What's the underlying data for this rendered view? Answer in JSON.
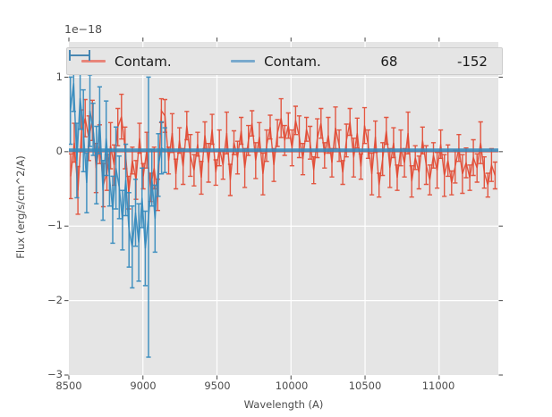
{
  "figure": {
    "offset_label": "1e−18"
  },
  "axes": {
    "xlabel": "Wavelength (A)",
    "ylabel": "Flux (erg/s/cm^2/A)",
    "x_ticks": [
      {
        "value": 8500,
        "label": "8500"
      },
      {
        "value": 9000,
        "label": "9000"
      },
      {
        "value": 9500,
        "label": "9500"
      },
      {
        "value": 10000,
        "label": "10000"
      },
      {
        "value": 10500,
        "label": "10500"
      },
      {
        "value": 11000,
        "label": "11000"
      }
    ],
    "y_ticks": [
      {
        "value": 1,
        "label": "1"
      },
      {
        "value": 0,
        "label": "0"
      },
      {
        "value": -1,
        "label": "−1"
      },
      {
        "value": -2,
        "label": "−2"
      },
      {
        "value": -3,
        "label": "−3"
      }
    ],
    "background_color": "#e5e5e5",
    "grid_color": "#ffffff",
    "tick_color": "#555555"
  },
  "legend": {
    "entries": [
      {
        "label": "Contam.",
        "type": "line",
        "swatch_color": "#e8857a"
      },
      {
        "label": "Contam.",
        "type": "line",
        "swatch_color": "#79a9cd"
      },
      {
        "label": "68",
        "type": "errorbar",
        "swatch_color": "#e24a33"
      },
      {
        "label": "-152",
        "type": "errorbar",
        "swatch_color": "#348abd"
      }
    ]
  },
  "chart_data": {
    "type": "line",
    "title": "",
    "xlabel": "Wavelength (A)",
    "ylabel": "Flux (erg/s/cm^2/A)",
    "y_offset_factor": "1e−18",
    "xlim": [
      8500,
      11400
    ],
    "ylim": [
      -3,
      1.473
    ],
    "grid": true,
    "legend_position": "upper center, horizontal",
    "series": [
      {
        "name": "Contam.",
        "type": "line",
        "color": "#e24a33",
        "opacity": 0.62,
        "linewidth": 2.2,
        "x": [
          8500,
          11400
        ],
        "y": [
          0,
          0
        ]
      },
      {
        "name": "68",
        "type": "errorbar",
        "color": "#e24a33",
        "opacity": 0.92,
        "linewidth": 1.4,
        "x_start": 8512,
        "x_step": 24.5,
        "values": [
          -0.33,
          0.12,
          -0.52,
          0.28,
          0.45,
          0.18,
          0.42,
          -0.22,
          0.1,
          -0.45,
          -0.28,
          0.08,
          -0.18,
          0.33,
          0.47,
          0.05,
          -0.55,
          -0.12,
          -0.38,
          0.18,
          -0.33,
          0.02,
          -0.48,
          -0.22,
          -0.58,
          0.55,
          0.48,
          -0.12,
          0.25,
          -0.3,
          0.15,
          -0.2,
          0.35,
          -0.05,
          -0.25,
          0.1,
          -0.35,
          0.22,
          -0.15,
          0.3,
          -0.28,
          0.05,
          -0.18,
          0.25,
          -0.38,
          0.12,
          -0.08,
          0.28,
          -0.22,
          0.15,
          0.38,
          -0.12,
          0.2,
          -0.3,
          0.08,
          0.33,
          -0.18,
          0.25,
          0.45,
          0.15,
          0.35,
          0.05,
          0.42,
          0.2,
          -0.1,
          0.3,
          0.12,
          -0.25,
          0.18,
          0.38,
          -0.05,
          0.22,
          -0.15,
          0.32,
          0.08,
          -0.28,
          0.15,
          0.4,
          -0.08,
          0.25,
          -0.2,
          0.35,
          0.1,
          -0.3,
          0.2,
          -0.45,
          -0.1,
          0.28,
          -0.22,
          0.12,
          -0.35,
          0.05,
          -0.15,
          0.25,
          -0.4,
          -0.08,
          -0.28,
          0.15,
          -0.18,
          -0.38,
          -0.05,
          -0.25,
          0.1,
          -0.32,
          -0.12,
          -0.42,
          -0.2,
          0.05,
          -0.3,
          -0.15,
          -0.35,
          -0.08,
          -0.22,
          0.12,
          -0.28,
          -0.45,
          -0.18,
          -0.32
        ],
        "errors": [
          0.3,
          0.26,
          0.32,
          0.28,
          0.25,
          0.3,
          0.27,
          0.33,
          0.26,
          0.29,
          0.24,
          0.31,
          0.27,
          0.25,
          0.3,
          0.28,
          0.22,
          0.18,
          0.26,
          0.2,
          0.17,
          0.24,
          0.19,
          0.28,
          0.21,
          0.16,
          0.22,
          0.18,
          0.26,
          0.2,
          0.17,
          0.24,
          0.19,
          0.28,
          0.21,
          0.16,
          0.22,
          0.18,
          0.26,
          0.2,
          0.17,
          0.24,
          0.19,
          0.28,
          0.21,
          0.16,
          0.22,
          0.18,
          0.26,
          0.2,
          0.17,
          0.24,
          0.19,
          0.28,
          0.21,
          0.16,
          0.22,
          0.18,
          0.26,
          0.2,
          0.17,
          0.24,
          0.19,
          0.28,
          0.21,
          0.16,
          0.22,
          0.18,
          0.26,
          0.2,
          0.17,
          0.24,
          0.19,
          0.28,
          0.21,
          0.16,
          0.22,
          0.18,
          0.26,
          0.2,
          0.17,
          0.24,
          0.19,
          0.28,
          0.21,
          0.16,
          0.22,
          0.18,
          0.26,
          0.2,
          0.17,
          0.24,
          0.19,
          0.28,
          0.21,
          0.16,
          0.22,
          0.18,
          0.26,
          0.2,
          0.17,
          0.24,
          0.19,
          0.28,
          0.21,
          0.16,
          0.22,
          0.18,
          0.26,
          0.2,
          0.17,
          0.24,
          0.19,
          0.28,
          0.21,
          0.16,
          0.22,
          0.18
        ]
      },
      {
        "name": "Contam.",
        "type": "line",
        "color": "#348abd",
        "opacity": 0.88,
        "linewidth": 3.8,
        "x": [
          8500,
          11400
        ],
        "y": [
          0.02,
          0.02
        ]
      },
      {
        "name": "-152",
        "type": "errorbar",
        "color": "#348abd",
        "opacity": 0.92,
        "linewidth": 1.5,
        "x_start": 8510,
        "x_step": 22,
        "values": [
          0.55,
          0.92,
          -0.12,
          0.72,
          0.28,
          -0.42,
          0.55,
          0.3,
          -0.18,
          0.42,
          -0.52,
          0.18,
          -0.35,
          -0.78,
          -0.22,
          -0.48,
          -0.92,
          -0.38,
          -1.05,
          -1.28,
          -0.82,
          -1.22,
          -0.62,
          -1.3,
          -0.88,
          -0.35,
          -0.9,
          -0.18,
          0.05,
          0.02
        ],
        "errors": [
          0.45,
          0.38,
          0.5,
          0.42,
          0.55,
          0.4,
          0.48,
          0.35,
          0.52,
          0.45,
          0.4,
          0.5,
          0.38,
          0.45,
          0.55,
          0.42,
          0.4,
          0.48,
          0.5,
          0.55,
          0.45,
          0.52,
          0.4,
          0.5,
          1.88,
          0.38,
          0.45,
          0.42,
          0.35,
          0.3
        ]
      }
    ]
  }
}
